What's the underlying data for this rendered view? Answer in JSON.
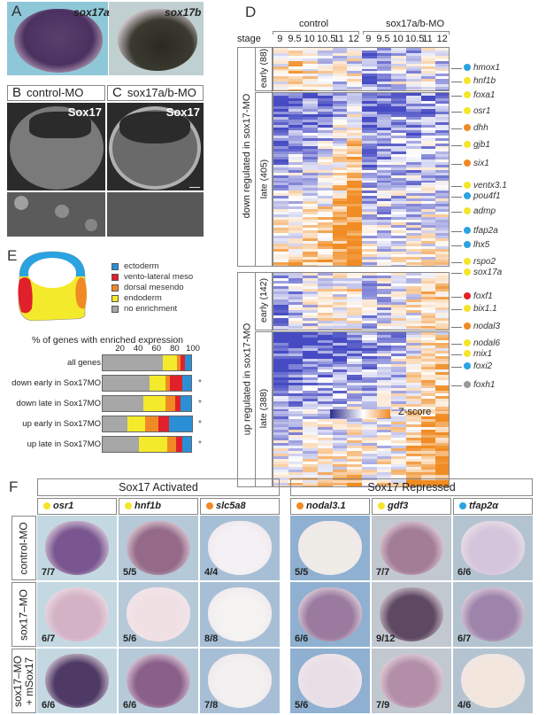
{
  "panel_letters": {
    "A": "A",
    "B": "B",
    "C": "C",
    "D": "D",
    "E": "E",
    "F": "F"
  },
  "panelA": {
    "left_label": "sox17a",
    "right_label": "sox17b"
  },
  "panelB": {
    "title": "control-MO",
    "stain": "Sox17"
  },
  "panelC": {
    "title": "sox17a/b-MO",
    "stain": "Sox17"
  },
  "panelE": {
    "legend": [
      {
        "label": "ectoderm",
        "color": "#2b8fd6"
      },
      {
        "label": "vento-lateral meso",
        "color": "#e0202a"
      },
      {
        "label": "dorsal mesendo",
        "color": "#f08a24"
      },
      {
        "label": "endoderm",
        "color": "#f4ea2c"
      },
      {
        "label": "no enrichment",
        "color": "#a7a7a7"
      }
    ]
  },
  "chart_data": {
    "type": "bar",
    "subtype": "stacked-horizontal",
    "title": "% of genes with enriched expression",
    "xlabel": "",
    "ylabel": "",
    "xlim": [
      0,
      100
    ],
    "xticks": [
      "20",
      "40",
      "60",
      "80",
      "100"
    ],
    "grid": false,
    "categories": [
      "all genes",
      "down early in Sox17MO",
      "down late in Sox17MO",
      "up early in Sox17MO",
      "up late in Sox17MO"
    ],
    "significance": [
      "",
      "*",
      "*",
      "*",
      "*"
    ],
    "series": [
      {
        "name": "no enrichment",
        "color": "#a7a7a7",
        "values": [
          67,
          52,
          46,
          28,
          41
        ]
      },
      {
        "name": "endoderm",
        "color": "#f4ea2c",
        "values": [
          16,
          18,
          24,
          20,
          31
        ]
      },
      {
        "name": "dorsal mesendo",
        "color": "#f08a24",
        "values": [
          3,
          5,
          11,
          14,
          10
        ]
      },
      {
        "name": "vento-lateral meso",
        "color": "#e0202a",
        "values": [
          5,
          13,
          5,
          12,
          6
        ]
      },
      {
        "name": "ectoderm",
        "color": "#2b8fd6",
        "values": [
          7,
          10,
          12,
          25,
          10
        ]
      }
    ]
  },
  "panelD": {
    "conditions": [
      "control",
      "sox17a/b-MO"
    ],
    "stage_label": "stage",
    "stages": [
      "9",
      "9.5",
      "10",
      "10.5",
      "11",
      "12",
      "9",
      "9.5",
      "10",
      "10.5",
      "11",
      "12"
    ],
    "groups": [
      {
        "label": "down regulated in sox17-MO",
        "subgroups": [
          {
            "label": "early (88)",
            "n": 88
          },
          {
            "label": "late (405)",
            "n": 405
          }
        ]
      },
      {
        "label": "up regulated in sox17-MO",
        "subgroups": [
          {
            "label": "early (142)",
            "n": 142
          },
          {
            "label": "late (388)",
            "n": 388
          }
        ]
      }
    ],
    "genes": [
      {
        "name": "hmox1",
        "color": "#2aa3e0"
      },
      {
        "name": "hnf1b",
        "color": "#f5e52a"
      },
      {
        "name": "foxa1",
        "color": "#f5e52a"
      },
      {
        "name": "osr1",
        "color": "#f5e52a"
      },
      {
        "name": "dhh",
        "color": "#f08a24"
      },
      {
        "name": "gjb1",
        "color": "#f5e52a"
      },
      {
        "name": "six1",
        "color": "#f08a24"
      },
      {
        "name": "ventx3.1",
        "color": "#f5e52a"
      },
      {
        "name": "pou4f1",
        "color": "#2aa3e0"
      },
      {
        "name": "admp",
        "color": "#f5e52a"
      },
      {
        "name": "tfap2a",
        "color": "#2aa3e0"
      },
      {
        "name": "lhx5",
        "color": "#2aa3e0"
      },
      {
        "name": "rspo2",
        "color": "#f5e52a"
      },
      {
        "name": "sox17a",
        "color": "#f5e52a"
      },
      {
        "name": "foxf1",
        "color": "#e0202a"
      },
      {
        "name": "bix1.1",
        "color": "#f5e52a"
      },
      {
        "name": "nodal3",
        "color": "#f08a24"
      },
      {
        "name": "nodal6",
        "color": "#f5e52a"
      },
      {
        "name": "mix1",
        "color": "#f5e52a"
      },
      {
        "name": "foxi2",
        "color": "#2aa3e0"
      },
      {
        "name": "foxh1",
        "color": "#999999"
      }
    ],
    "colorbar": {
      "label": "Z-score",
      "low_color": "#2e2e8c",
      "mid_color": "#ffffff",
      "high_color": "#f08a24"
    }
  },
  "panelF": {
    "groups": [
      "Sox17 Activated",
      "Sox17 Repressed"
    ],
    "genes": [
      {
        "name": "osr1",
        "dot": "#f5e52a"
      },
      {
        "name": "hnf1b",
        "dot": "#f5e52a"
      },
      {
        "name": "slc5a8",
        "dot": "#f08a24"
      },
      {
        "name": "nodal3.1",
        "dot": "#f08a24"
      },
      {
        "name": "gdf3",
        "dot": "#f5e52a"
      },
      {
        "name": "tfap2α",
        "dot": "#2aa3e0"
      }
    ],
    "rows": [
      {
        "label": "control-MO",
        "counts": [
          "7/7",
          "5/5",
          "4/4",
          "5/5",
          "7/7",
          "6/6"
        ]
      },
      {
        "label": "sox17–MO",
        "counts": [
          "6/7",
          "5/6",
          "8/8",
          "6/6",
          "9/12",
          "6/7"
        ]
      },
      {
        "label": "sox17–MO\n+ mSox17",
        "counts": [
          "6/6",
          "6/6",
          "7/8",
          "5/6",
          "7/9",
          "4/6"
        ]
      }
    ]
  }
}
